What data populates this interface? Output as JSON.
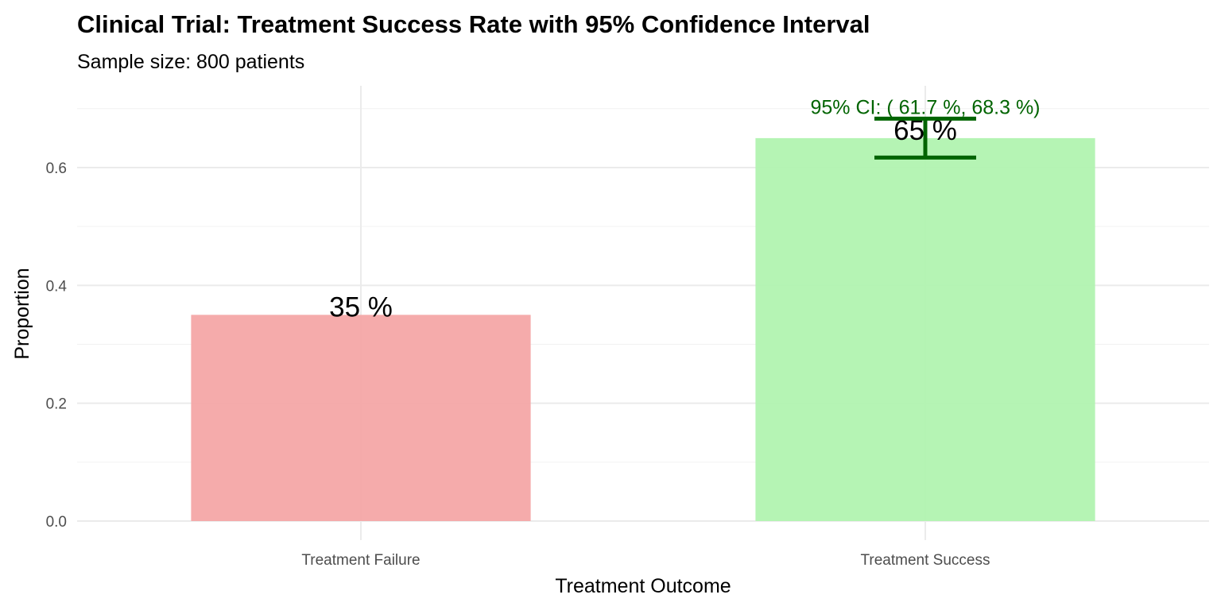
{
  "chart_data": {
    "type": "bar",
    "title": "Clinical Trial: Treatment Success Rate with 95% Confidence Interval",
    "subtitle": "Sample size: 800 patients",
    "xlabel": "Treatment Outcome",
    "ylabel": "Proportion",
    "categories": [
      "Treatment Failure",
      "Treatment Success"
    ],
    "values": [
      0.35,
      0.65
    ],
    "data_labels": [
      "35 %",
      "65 %"
    ],
    "bar_colors": [
      "#f4a6a6",
      "#b1f3b0"
    ],
    "error_bar": {
      "category": "Treatment Success",
      "lower": 0.617,
      "upper": 0.683,
      "color": "#006400",
      "label": "95% CI: ( 61.7 %, 68.3 %)"
    },
    "yticks": [
      0.0,
      0.2,
      0.4,
      0.6
    ],
    "ytick_labels": [
      "0.0",
      "0.2",
      "0.4",
      "0.6"
    ],
    "ylim": [
      -0.025,
      0.74
    ],
    "grid": true
  }
}
